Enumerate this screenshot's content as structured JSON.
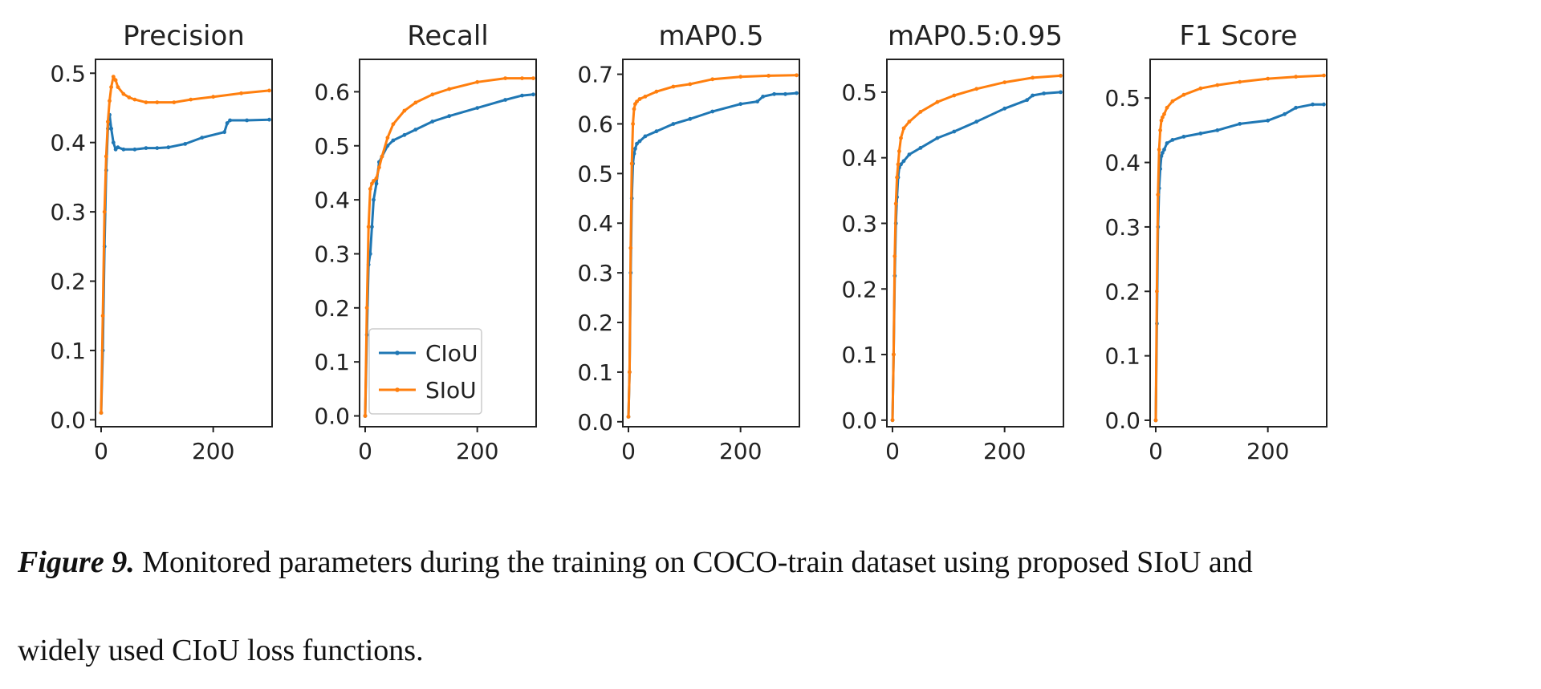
{
  "caption": {
    "label": "Figure 9.",
    "line1": "Monitored parameters during the training on COCO-train dataset using proposed SIoU and",
    "line2": "widely used CIoU loss functions."
  },
  "colors": {
    "ciou": "#1f77b4",
    "siou": "#ff7f0e",
    "axes": "#222222"
  },
  "legend": {
    "location": "lower-right of Recall panel",
    "entries": [
      "CIoU",
      "SIoU"
    ]
  },
  "chart_data": [
    {
      "type": "line",
      "title": "Precision",
      "xlabel": "",
      "ylabel": "",
      "xlim": [
        -10,
        305
      ],
      "ylim": [
        -0.01,
        0.52
      ],
      "xticks": [
        0,
        200
      ],
      "yticks": [
        0.0,
        0.1,
        0.2,
        0.3,
        0.4,
        0.5
      ],
      "series": [
        {
          "name": "CIoU",
          "x": [
            0,
            3,
            6,
            9,
            12,
            15,
            18,
            22,
            26,
            30,
            40,
            60,
            80,
            100,
            120,
            150,
            180,
            220,
            225,
            230,
            260,
            300
          ],
          "y": [
            0.01,
            0.1,
            0.25,
            0.36,
            0.42,
            0.44,
            0.42,
            0.4,
            0.39,
            0.393,
            0.39,
            0.39,
            0.392,
            0.392,
            0.393,
            0.398,
            0.407,
            0.415,
            0.428,
            0.432,
            0.432,
            0.433
          ]
        },
        {
          "name": "SIoU",
          "x": [
            0,
            3,
            6,
            9,
            12,
            15,
            18,
            22,
            26,
            30,
            40,
            50,
            60,
            80,
            100,
            130,
            160,
            200,
            250,
            300
          ],
          "y": [
            0.01,
            0.15,
            0.3,
            0.38,
            0.43,
            0.46,
            0.48,
            0.495,
            0.49,
            0.48,
            0.47,
            0.465,
            0.462,
            0.458,
            0.458,
            0.458,
            0.462,
            0.466,
            0.471,
            0.475
          ]
        }
      ]
    },
    {
      "type": "line",
      "title": "Recall",
      "xlabel": "",
      "ylabel": "",
      "xlim": [
        -10,
        305
      ],
      "ylim": [
        -0.02,
        0.66
      ],
      "xticks": [
        0,
        200
      ],
      "yticks": [
        0.0,
        0.1,
        0.2,
        0.3,
        0.4,
        0.5,
        0.6
      ],
      "series": [
        {
          "name": "CIoU",
          "x": [
            0,
            3,
            6,
            9,
            12,
            15,
            20,
            25,
            30,
            40,
            50,
            70,
            90,
            120,
            150,
            200,
            250,
            280,
            300
          ],
          "y": [
            0.0,
            0.15,
            0.28,
            0.3,
            0.35,
            0.4,
            0.43,
            0.47,
            0.48,
            0.5,
            0.51,
            0.52,
            0.53,
            0.545,
            0.555,
            0.57,
            0.585,
            0.593,
            0.595
          ]
        },
        {
          "name": "SIoU",
          "x": [
            0,
            3,
            6,
            9,
            12,
            15,
            20,
            25,
            30,
            40,
            50,
            70,
            90,
            120,
            150,
            200,
            250,
            280,
            300
          ],
          "y": [
            0.0,
            0.2,
            0.35,
            0.42,
            0.43,
            0.435,
            0.44,
            0.46,
            0.48,
            0.515,
            0.54,
            0.565,
            0.58,
            0.595,
            0.605,
            0.618,
            0.625,
            0.625,
            0.625
          ]
        }
      ]
    },
    {
      "type": "line",
      "title": "mAP0.5",
      "xlabel": "",
      "ylabel": "",
      "xlim": [
        -10,
        305
      ],
      "ylim": [
        -0.01,
        0.73
      ],
      "xticks": [
        0,
        200
      ],
      "yticks": [
        0.0,
        0.1,
        0.2,
        0.3,
        0.4,
        0.5,
        0.6,
        0.7
      ],
      "series": [
        {
          "name": "CIoU",
          "x": [
            0,
            2,
            4,
            6,
            8,
            10,
            12,
            15,
            20,
            30,
            50,
            80,
            110,
            150,
            200,
            230,
            240,
            260,
            280,
            300
          ],
          "y": [
            0.01,
            0.1,
            0.3,
            0.45,
            0.52,
            0.54,
            0.55,
            0.56,
            0.565,
            0.575,
            0.585,
            0.6,
            0.61,
            0.625,
            0.64,
            0.645,
            0.655,
            0.66,
            0.66,
            0.662
          ]
        },
        {
          "name": "SIoU",
          "x": [
            0,
            2,
            4,
            6,
            8,
            10,
            12,
            15,
            20,
            30,
            50,
            80,
            110,
            150,
            200,
            250,
            300
          ],
          "y": [
            0.01,
            0.1,
            0.35,
            0.52,
            0.6,
            0.63,
            0.64,
            0.645,
            0.65,
            0.655,
            0.665,
            0.675,
            0.68,
            0.69,
            0.695,
            0.697,
            0.698
          ]
        }
      ]
    },
    {
      "type": "line",
      "title": "mAP0.5:0.95",
      "xlabel": "",
      "ylabel": "",
      "xlim": [
        -10,
        305
      ],
      "ylim": [
        -0.01,
        0.55
      ],
      "xticks": [
        0,
        200
      ],
      "yticks": [
        0.0,
        0.1,
        0.2,
        0.3,
        0.4,
        0.5
      ],
      "series": [
        {
          "name": "CIoU",
          "x": [
            0,
            2,
            4,
            6,
            8,
            10,
            12,
            15,
            20,
            30,
            50,
            80,
            110,
            150,
            200,
            240,
            250,
            270,
            300
          ],
          "y": [
            0.0,
            0.1,
            0.22,
            0.3,
            0.34,
            0.37,
            0.385,
            0.39,
            0.395,
            0.405,
            0.415,
            0.43,
            0.44,
            0.455,
            0.475,
            0.488,
            0.495,
            0.498,
            0.5
          ]
        },
        {
          "name": "SIoU",
          "x": [
            0,
            2,
            4,
            6,
            8,
            10,
            12,
            15,
            20,
            30,
            50,
            80,
            110,
            150,
            200,
            250,
            300
          ],
          "y": [
            0.0,
            0.1,
            0.25,
            0.33,
            0.37,
            0.39,
            0.41,
            0.43,
            0.445,
            0.455,
            0.47,
            0.485,
            0.495,
            0.505,
            0.515,
            0.522,
            0.525
          ]
        }
      ]
    },
    {
      "type": "line",
      "title": "F1 Score",
      "xlabel": "",
      "ylabel": "",
      "xlim": [
        -10,
        305
      ],
      "ylim": [
        -0.01,
        0.56
      ],
      "xticks": [
        0,
        200
      ],
      "yticks": [
        0.0,
        0.1,
        0.2,
        0.3,
        0.4,
        0.5
      ],
      "series": [
        {
          "name": "CIoU",
          "x": [
            0,
            2,
            4,
            6,
            8,
            10,
            12,
            15,
            20,
            30,
            50,
            80,
            110,
            150,
            200,
            230,
            250,
            280,
            300
          ],
          "y": [
            0.0,
            0.15,
            0.3,
            0.36,
            0.39,
            0.41,
            0.415,
            0.42,
            0.43,
            0.435,
            0.44,
            0.445,
            0.45,
            0.46,
            0.465,
            0.475,
            0.485,
            0.49,
            0.49
          ]
        },
        {
          "name": "SIoU",
          "x": [
            0,
            2,
            4,
            6,
            8,
            10,
            12,
            15,
            20,
            30,
            50,
            80,
            110,
            150,
            200,
            250,
            300
          ],
          "y": [
            0.0,
            0.2,
            0.35,
            0.42,
            0.45,
            0.465,
            0.47,
            0.475,
            0.485,
            0.495,
            0.505,
            0.515,
            0.52,
            0.525,
            0.53,
            0.533,
            0.535
          ]
        }
      ]
    }
  ]
}
